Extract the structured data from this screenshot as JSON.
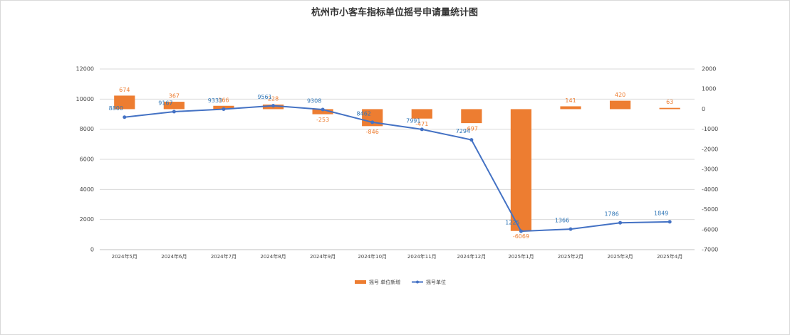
{
  "chart_data": {
    "type": "bar_line",
    "title": "杭州市小客车指标单位摇号申请量统计图",
    "categories": [
      "2024年5月",
      "2024年6月",
      "2024年7月",
      "2024年8月",
      "2024年9月",
      "2024年10月",
      "2024年11月",
      "2024年12月",
      "2025年1月",
      "2025年2月",
      "2025年3月",
      "2025年4月"
    ],
    "series": [
      {
        "name": "摇号 单位新增",
        "type": "bar",
        "axis": "y2",
        "color": "#ed7d31",
        "values": [
          674,
          367,
          166,
          228,
          -253,
          -846,
          -471,
          -697,
          -6069,
          141,
          420,
          63
        ]
      },
      {
        "name": "摇号单位",
        "type": "line",
        "axis": "y",
        "color": "#4472c4",
        "values": [
          8800,
          9167,
          9333,
          9561,
          9308,
          8462,
          7991,
          7294,
          1225,
          1366,
          1786,
          1849
        ]
      }
    ],
    "ylim": [
      0,
      12000
    ],
    "yticks": [
      0,
      2000,
      4000,
      6000,
      8000,
      10000,
      12000
    ],
    "y2lim": [
      -7000,
      2000
    ],
    "y2ticks": [
      -7000,
      -6000,
      -5000,
      -4000,
      -3000,
      -2000,
      -1000,
      0,
      1000,
      2000
    ],
    "grid": true,
    "legend": "bottom"
  }
}
